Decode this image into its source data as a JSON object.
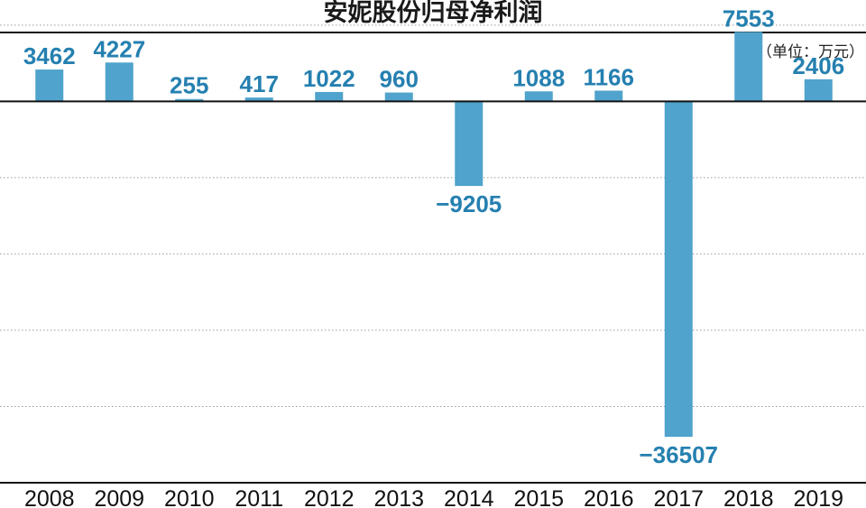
{
  "chart_data": {
    "type": "bar",
    "title": "安妮股份归母净利润",
    "unit_label": "（单位：万元）",
    "categories": [
      "2008",
      "2009",
      "2010",
      "2011",
      "2012",
      "2013",
      "2014",
      "2015",
      "2016",
      "2017",
      "2018",
      "2019"
    ],
    "values": [
      3462,
      4227,
      255,
      417,
      1022,
      960,
      -9205,
      1088,
      1166,
      -36507,
      7553,
      2406
    ],
    "value_labels": [
      "3462",
      "4227",
      "255",
      "417",
      "1022",
      "960",
      "−9205",
      "1088",
      "1166",
      "−36507",
      "7553",
      "2406"
    ],
    "ylim": [
      -41500,
      10000
    ],
    "grid": true,
    "grid_step": 8300,
    "xlabel": "",
    "ylabel": ""
  },
  "colors": {
    "bar": "#4fa3cc",
    "label": "#2580b0",
    "axis": "#111111",
    "grid": "#9a9a9a"
  }
}
